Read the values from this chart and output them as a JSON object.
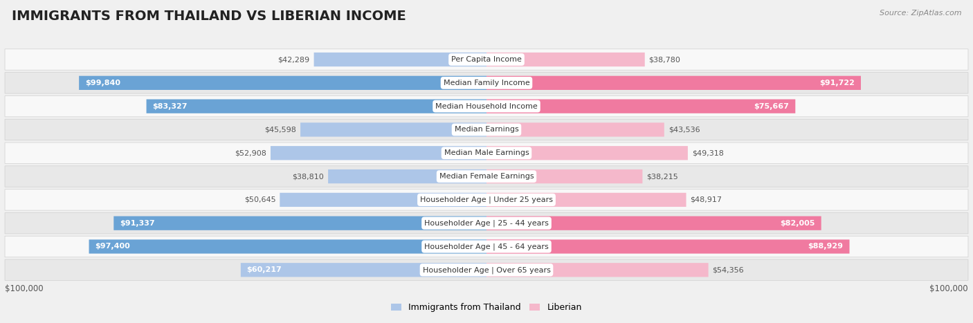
{
  "title": "IMMIGRANTS FROM THAILAND VS LIBERIAN INCOME",
  "source": "Source: ZipAtlas.com",
  "categories": [
    "Per Capita Income",
    "Median Family Income",
    "Median Household Income",
    "Median Earnings",
    "Median Male Earnings",
    "Median Female Earnings",
    "Householder Age | Under 25 years",
    "Householder Age | 25 - 44 years",
    "Householder Age | 45 - 64 years",
    "Householder Age | Over 65 years"
  ],
  "thailand_values": [
    42289,
    99840,
    83327,
    45598,
    52908,
    38810,
    50645,
    91337,
    97400,
    60217
  ],
  "liberian_values": [
    38780,
    91722,
    75667,
    43536,
    49318,
    38215,
    48917,
    82005,
    88929,
    54356
  ],
  "max_value": 100000,
  "thailand_light_color": "#adc6e8",
  "thailand_dark_color": "#6aa3d5",
  "liberian_light_color": "#f5b8cb",
  "liberian_dark_color": "#f07aa0",
  "bg_color": "#f0f0f0",
  "row_light_bg": "#f8f8f8",
  "row_dark_bg": "#e8e8e8",
  "row_border": "#d0d0d0",
  "axis_label_left": "$100,000",
  "axis_label_right": "$100,000",
  "legend_thailand": "Immigrants from Thailand",
  "legend_liberian": "Liberian",
  "title_fontsize": 14,
  "source_fontsize": 8,
  "label_fontsize": 8,
  "value_fontsize": 8
}
